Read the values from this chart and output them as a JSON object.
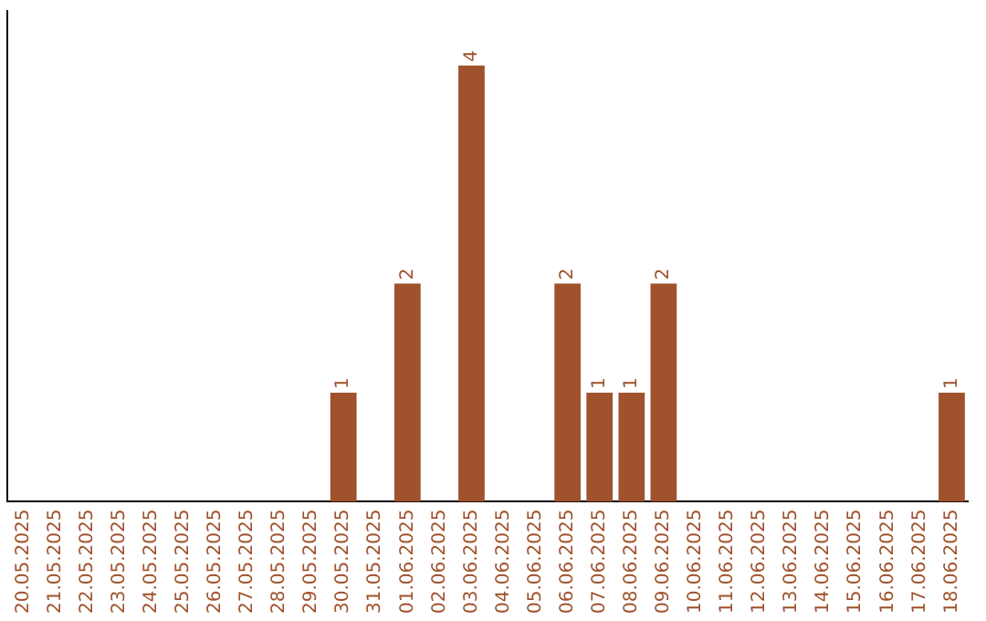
{
  "chart_data": {
    "type": "bar",
    "categories": [
      "20.05.2025",
      "21.05.2025",
      "22.05.2025",
      "23.05.2025",
      "24.05.2025",
      "25.05.2025",
      "26.05.2025",
      "27.05.2025",
      "28.05.2025",
      "29.05.2025",
      "30.05.2025",
      "31.05.2025",
      "01.06.2025",
      "02.06.2025",
      "03.06.2025",
      "04.06.2025",
      "05.06.2025",
      "06.06.2025",
      "07.06.2025",
      "08.06.2025",
      "09.06.2025",
      "10.06.2025",
      "11.06.2025",
      "12.06.2025",
      "13.06.2025",
      "14.06.2025",
      "15.06.2025",
      "16.06.2025",
      "17.06.2025",
      "18.06.2025"
    ],
    "values": [
      0,
      0,
      0,
      0,
      0,
      0,
      0,
      0,
      0,
      0,
      1,
      0,
      2,
      0,
      4,
      0,
      0,
      2,
      1,
      1,
      2,
      0,
      0,
      0,
      0,
      0,
      0,
      0,
      0,
      1
    ],
    "value_labels": [
      null,
      null,
      null,
      null,
      null,
      null,
      null,
      null,
      null,
      null,
      "1",
      null,
      "2",
      null,
      "4",
      null,
      null,
      "2",
      "1",
      "1",
      "2",
      null,
      null,
      null,
      null,
      null,
      null,
      null,
      null,
      "1"
    ],
    "color": "#a0522d",
    "grid": false,
    "legend": false,
    "tick_labels": "x"
  }
}
